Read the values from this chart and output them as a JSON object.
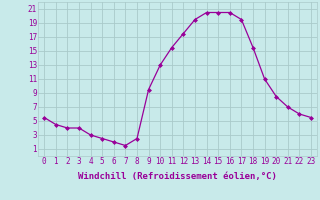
{
  "x": [
    0,
    1,
    2,
    3,
    4,
    5,
    6,
    7,
    8,
    9,
    10,
    11,
    12,
    13,
    14,
    15,
    16,
    17,
    18,
    19,
    20,
    21,
    22,
    23
  ],
  "y": [
    5.5,
    4.5,
    4.0,
    4.0,
    3.0,
    2.5,
    2.0,
    1.5,
    2.5,
    9.5,
    13.0,
    15.5,
    17.5,
    19.5,
    20.5,
    20.5,
    20.5,
    19.5,
    15.5,
    11.0,
    8.5,
    7.0,
    6.0,
    5.5
  ],
  "line_color": "#990099",
  "marker": "D",
  "marker_size": 2,
  "bg_color": "#c8eaea",
  "grid_color": "#aacaca",
  "xlabel": "Windchill (Refroidissement éolien,°C)",
  "xlim": [
    -0.5,
    23.5
  ],
  "ylim": [
    0,
    22
  ],
  "yticks": [
    1,
    3,
    5,
    7,
    9,
    11,
    13,
    15,
    17,
    19,
    21
  ],
  "xticks": [
    0,
    1,
    2,
    3,
    4,
    5,
    6,
    7,
    8,
    9,
    10,
    11,
    12,
    13,
    14,
    15,
    16,
    17,
    18,
    19,
    20,
    21,
    22,
    23
  ],
  "tick_label_fontsize": 5.5,
  "xlabel_fontsize": 6.5,
  "linewidth": 0.9
}
